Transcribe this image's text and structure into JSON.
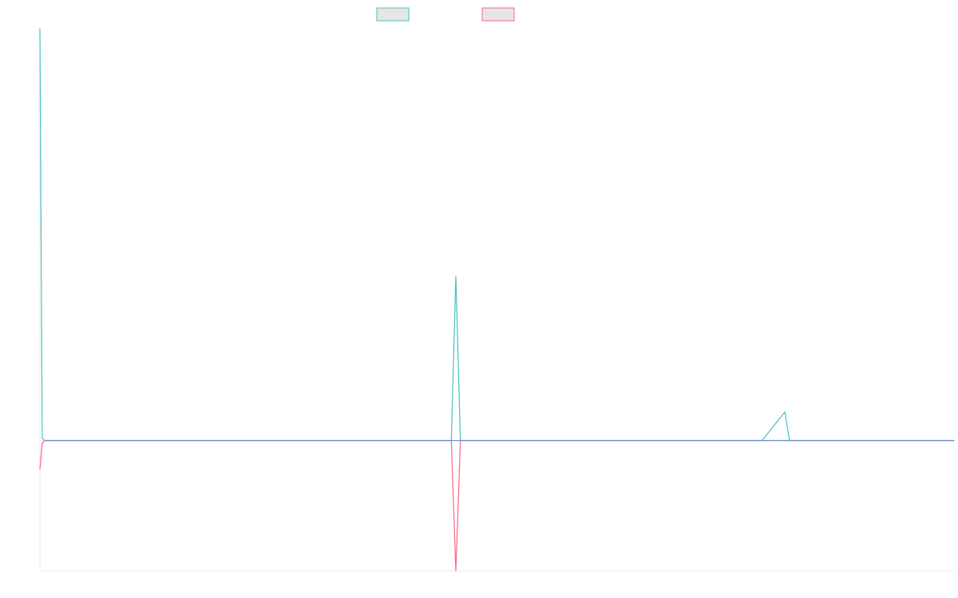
{
  "chart_data": {
    "type": "line",
    "title": "",
    "xlabel": "",
    "ylabel": "",
    "x": [
      0,
      0.5,
      1,
      2,
      3,
      90,
      91,
      92,
      93,
      94,
      95,
      158,
      163,
      164,
      165,
      200
    ],
    "ylim": [
      -5,
      15.8
    ],
    "grid": false,
    "legend_position": "top-center",
    "series": [
      {
        "color": "#4bc0c0",
        "fill": "#e6e6e6",
        "values": [
          15.8,
          0.1,
          0.0,
          0.0,
          0.0,
          0.0,
          6.3,
          0.0,
          0.0,
          0.0,
          0.0,
          0.0,
          1.1,
          0.0,
          0.0,
          0.0
        ]
      },
      {
        "color": "#ff6384",
        "fill": "#e6e6e6",
        "values": [
          -1.1,
          -0.1,
          0.0,
          0.0,
          0.0,
          0.0,
          -5.0,
          0.0,
          0.0,
          0.0,
          0.0,
          0.0,
          0.0,
          0.0,
          0.0,
          0.0
        ]
      }
    ],
    "zero_line_color": "#6a8fc8",
    "axis_color": "#e8e8e8"
  }
}
